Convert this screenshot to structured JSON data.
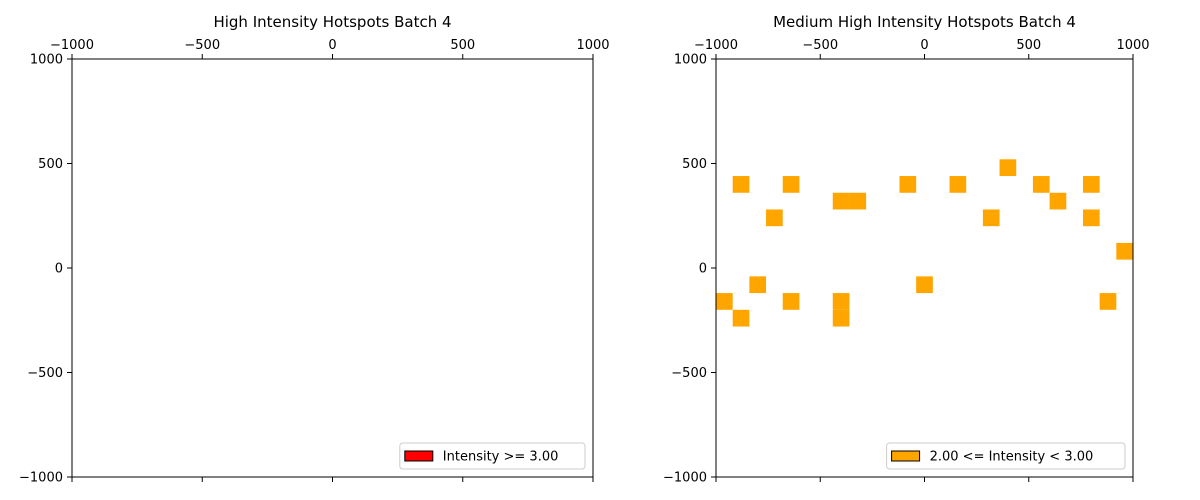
{
  "chart_data": [
    {
      "type": "heatmap",
      "title": "High Intensity Hotspots Batch 4",
      "xlim": [
        -1000,
        1000
      ],
      "ylim": [
        -1000,
        1000
      ],
      "xticks": [
        "−1000",
        "−500",
        "0",
        "500",
        "1000"
      ],
      "yticks": [
        "1000",
        "500",
        "0",
        "−500",
        "−1000"
      ],
      "xaxis_position": "top",
      "grid": false,
      "cell_size": 80,
      "legend": {
        "label": "Intensity >= 3.00",
        "color": "#ff0000",
        "placement": "lower right"
      },
      "points": []
    },
    {
      "type": "heatmap",
      "title": "Medium High Intensity Hotspots Batch 4",
      "xlim": [
        -1000,
        1000
      ],
      "ylim": [
        -1000,
        1000
      ],
      "xticks": [
        "−1000",
        "−500",
        "0",
        "500",
        "1000"
      ],
      "yticks": [
        "1000",
        "500",
        "0",
        "−500",
        "−1000"
      ],
      "xaxis_position": "top",
      "grid": false,
      "cell_size": 80,
      "legend": {
        "label": "2.00 <= Intensity < 3.00",
        "color": "#ffa500",
        "placement": "lower right"
      },
      "points": [
        {
          "x": -880,
          "y": 400
        },
        {
          "x": -640,
          "y": 400
        },
        {
          "x": -720,
          "y": 240
        },
        {
          "x": -400,
          "y": 320
        },
        {
          "x": -320,
          "y": 320
        },
        {
          "x": -80,
          "y": 400
        },
        {
          "x": 160,
          "y": 400
        },
        {
          "x": 400,
          "y": 480
        },
        {
          "x": 560,
          "y": 400
        },
        {
          "x": 640,
          "y": 320
        },
        {
          "x": 320,
          "y": 240
        },
        {
          "x": 800,
          "y": 400
        },
        {
          "x": 800,
          "y": 240
        },
        {
          "x": 960,
          "y": 80
        },
        {
          "x": -960,
          "y": -160
        },
        {
          "x": -880,
          "y": -240
        },
        {
          "x": -800,
          "y": -80
        },
        {
          "x": -640,
          "y": -160
        },
        {
          "x": -400,
          "y": -160
        },
        {
          "x": -400,
          "y": -240
        },
        {
          "x": 0,
          "y": -80
        },
        {
          "x": 880,
          "y": -160
        }
      ]
    }
  ]
}
